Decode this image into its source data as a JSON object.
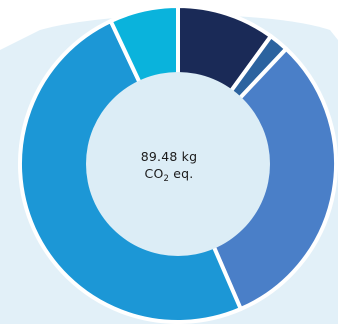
{
  "chart_data": {
    "type": "donut",
    "title": "",
    "center_label": {
      "value": "89.48 kg",
      "unit_prefix": "CO",
      "unit_subscript": "2",
      "unit_suffix": "eq."
    },
    "series": [
      {
        "value": 10.0,
        "color": "#1a2a57"
      },
      {
        "value": 2.0,
        "color": "#2c639f"
      },
      {
        "value": 31.5,
        "color": "#4a7fc8"
      },
      {
        "value": 49.5,
        "color": "#1c97d6"
      },
      {
        "value": 7.0,
        "color": "#0ab3dc"
      }
    ],
    "background_color": "#e2f0f8",
    "separator_color": "#ffffff",
    "center_color": "#dcedf6",
    "legend": "none",
    "grid": false
  }
}
